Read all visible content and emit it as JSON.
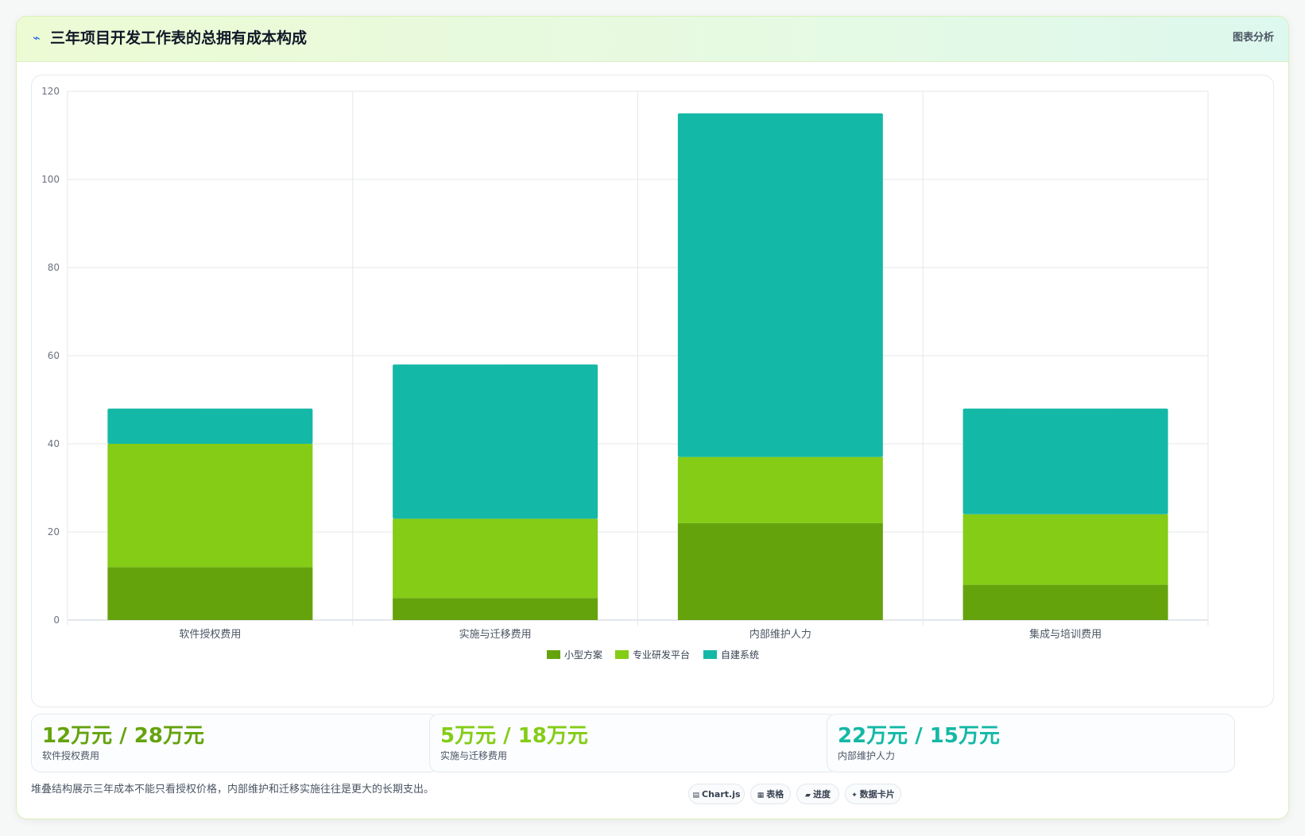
{
  "header": {
    "icon": "chart-line-icon",
    "icon_glyph": "⌁",
    "title": "三年项目开发工作表的总拥有成本构成",
    "tag": "图表分析"
  },
  "chart_data": {
    "type": "bar",
    "stacked": true,
    "categories": [
      "软件授权费用",
      "实施与迁移费用",
      "内部维护人力",
      "集成与培训费用"
    ],
    "series": [
      {
        "name": "小型方案",
        "color": "#65a30d",
        "values": [
          12,
          5,
          22,
          8
        ]
      },
      {
        "name": "专业研发平台",
        "color": "#84cc16",
        "values": [
          28,
          18,
          15,
          16
        ]
      },
      {
        "name": "自建系统",
        "color": "#14b8a6",
        "values": [
          8,
          35,
          78,
          24
        ]
      }
    ],
    "ylim": [
      0,
      120
    ],
    "yticks": [
      "0",
      "20",
      "40",
      "60",
      "80",
      "100",
      "120"
    ],
    "grid": true,
    "legend": "bottom"
  },
  "stats": [
    {
      "value": "12万元 / 28万元",
      "label": "软件授权费用",
      "color": "#65a30d"
    },
    {
      "value": "5万元 / 18万元",
      "label": "实施与迁移费用",
      "color": "#84cc16"
    },
    {
      "value": "22万元 / 15万元",
      "label": "内部维护人力",
      "color": "#14b8a6"
    }
  ],
  "footnote": "堆叠结构展示三年成本不能只看授权价格，内部维护和迁移实施往往是更大的长期支出。",
  "chips": [
    {
      "icon": "chart-icon",
      "glyph": "▤",
      "label": "Chart.js"
    },
    {
      "icon": "table-icon",
      "glyph": "▦",
      "label": "表格"
    },
    {
      "icon": "progress-icon",
      "glyph": "▰",
      "label": "进度"
    },
    {
      "icon": "sparkle-icon",
      "glyph": "✦",
      "label": "数据卡片"
    }
  ]
}
